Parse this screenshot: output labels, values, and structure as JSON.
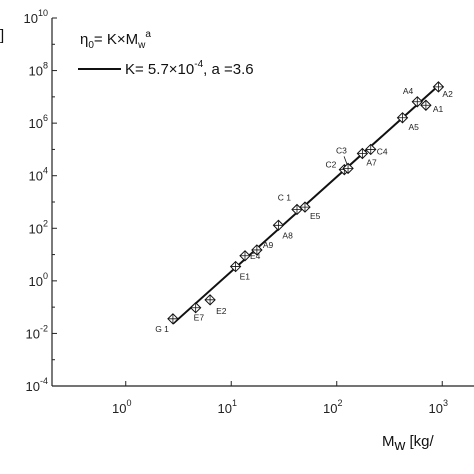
{
  "chart_data": {
    "type": "scatter",
    "xlabel": {
      "base": "M",
      "sub": "w",
      "rest": " [kg/"
    },
    "ylabel_fragment": "]",
    "xscale": "log",
    "yscale": "log",
    "xlim": [
      0.2,
      2000
    ],
    "ylim": [
      0.0001,
      10000000000
    ],
    "x_tick_labels": [
      {
        "value": 1,
        "base": "10",
        "exp": "0"
      },
      {
        "value": 10,
        "base": "10",
        "exp": "1"
      },
      {
        "value": 100,
        "base": "10",
        "exp": "2"
      },
      {
        "value": 1000,
        "base": "10",
        "exp": "3"
      }
    ],
    "y_tick_labels": [
      {
        "value": 0.0001,
        "base": "10",
        "exp": "-4"
      },
      {
        "value": 0.01,
        "base": "10",
        "exp": "-2"
      },
      {
        "value": 1,
        "base": "10",
        "exp": "0"
      },
      {
        "value": 100,
        "base": "10",
        "exp": "2"
      },
      {
        "value": 10000,
        "base": "10",
        "exp": "4"
      },
      {
        "value": 1000000,
        "base": "10",
        "exp": "6"
      },
      {
        "value": 100000000,
        "base": "10",
        "exp": "8"
      },
      {
        "value": 10000000000,
        "base": "10",
        "exp": "10"
      }
    ],
    "legend": {
      "placement": "top-left",
      "equation": {
        "eta": "η",
        "sub0": "0",
        "rest": "= K×M",
        "subw": "w",
        "supa": "a"
      },
      "fit_label": {
        "pre": "K= 5.7×10",
        "exp": "-4",
        "post": ", a =3.6"
      }
    },
    "fit": {
      "K": 0.00057,
      "a": 3.6,
      "x_range": [
        2.8,
        950
      ]
    },
    "points": [
      {
        "label": "G 1",
        "x": 2.8,
        "y": 0.036
      },
      {
        "label": "E7",
        "x": 4.6,
        "y": 0.095
      },
      {
        "label": "E2",
        "x": 6.3,
        "y": 0.19
      },
      {
        "label": "E1",
        "x": 11,
        "y": 3.5
      },
      {
        "label": "E4",
        "x": 13.5,
        "y": 9
      },
      {
        "label": "A9",
        "x": 17.5,
        "y": 15
      },
      {
        "label": "A8",
        "x": 28,
        "y": 130
      },
      {
        "label": "C 1",
        "x": 42,
        "y": 520
      },
      {
        "label": "E5",
        "x": 50,
        "y": 640
      },
      {
        "label": "C2",
        "x": 118,
        "y": 17000
      },
      {
        "label": "C3",
        "x": 128,
        "y": 19000
      },
      {
        "label": "A7",
        "x": 175,
        "y": 70000
      },
      {
        "label": "C4",
        "x": 210,
        "y": 100000
      },
      {
        "label": "A5",
        "x": 420,
        "y": 1600000
      },
      {
        "label": "A4",
        "x": 580,
        "y": 6500000
      },
      {
        "label": "A1",
        "x": 700,
        "y": 4800000
      },
      {
        "label": "A2",
        "x": 920,
        "y": 24000000
      }
    ]
  }
}
